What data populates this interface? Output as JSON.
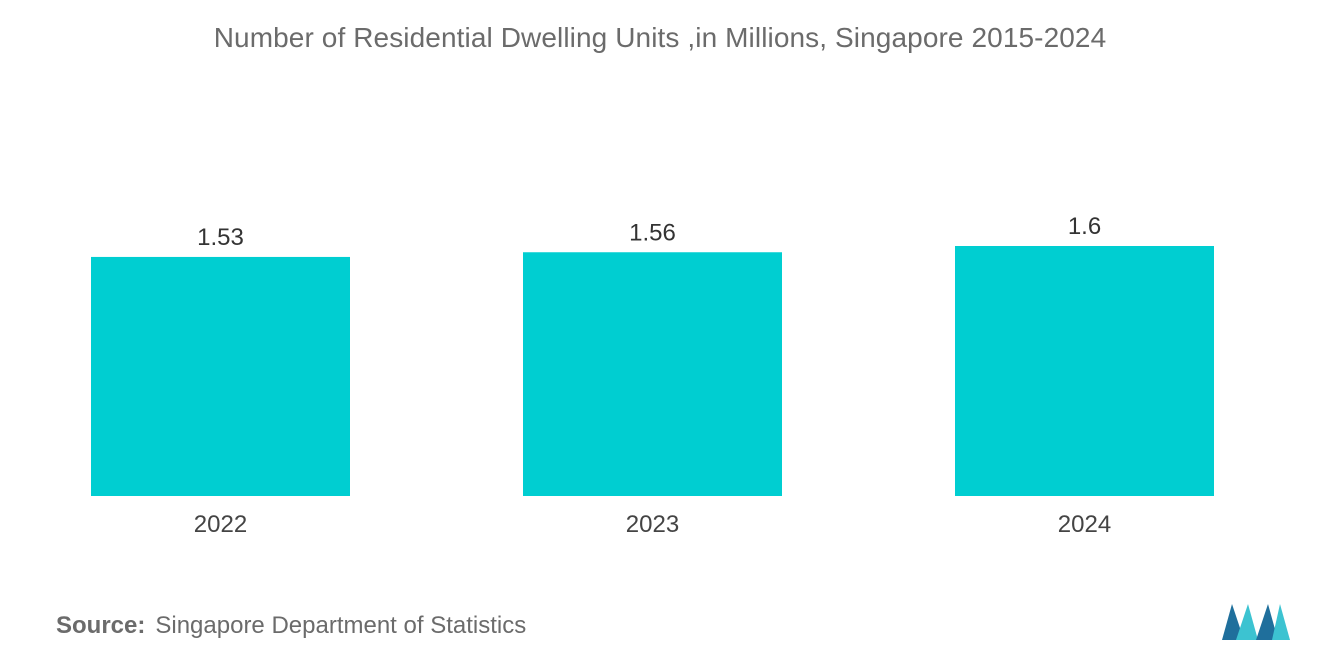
{
  "title": "Number of Residential Dwelling Units ,in Millions, Singapore 2015-2024",
  "source": {
    "label": "Source:",
    "text": "Singapore Department of Statistics"
  },
  "colors": {
    "bar": "#00CED1",
    "text": "#6b6b6b",
    "logo_dark": "#1f6f9c",
    "logo_light": "#3cc3d1"
  },
  "chart_data": {
    "type": "bar",
    "title": "Number of Residential Dwelling Units ,in Millions, Singapore 2015-2024",
    "categories": [
      "2022",
      "2023",
      "2024"
    ],
    "values": [
      1.53,
      1.56,
      1.6
    ],
    "value_labels": [
      "1.53",
      "1.56",
      "1.6"
    ],
    "xlabel": "",
    "ylabel": "",
    "ylim": [
      0,
      1.6
    ],
    "grid": false,
    "legend": "none"
  }
}
